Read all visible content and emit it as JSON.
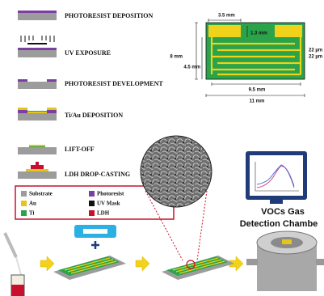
{
  "steps": [
    "PHOTORESIST DEPOSITION",
    "UV EXPOSURE",
    "PHOTORESIST DEVELOPMENT",
    "Ti/Au DEPOSITION",
    "LIFT-OFF",
    "LDH DROP-CASTING"
  ],
  "legend": [
    "Substrate",
    "Photoresist",
    "Au",
    "UV Mask",
    "Ti",
    "LDH"
  ],
  "electrode": {
    "width_pad": "3.5 mm",
    "height_pad": "1.3 mm",
    "total_height": "8 mm",
    "finger_height": "4.5 mm",
    "finger_length": "9.5 mm",
    "total_width": "11 mm",
    "finger_width": "22 µm",
    "finger_gap": "22 µm"
  },
  "chamber": {
    "line1": "VOCs Gas",
    "line2": "Detection Chambe"
  }
}
